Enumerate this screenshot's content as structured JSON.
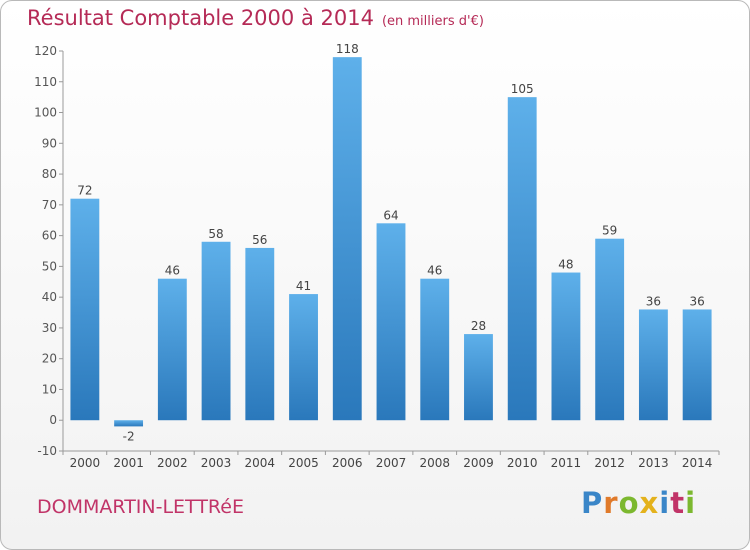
{
  "header": {
    "title": "Résultat Comptable 2000 à 2014",
    "subtitle": "(en milliers d'€)"
  },
  "footer": {
    "town": "DOMMARTIN-LETTRéE",
    "logo_letters": [
      {
        "char": "P",
        "color": "#3a86c8"
      },
      {
        "char": "r",
        "color": "#e07a2a"
      },
      {
        "char": "o",
        "color": "#7cb82f"
      },
      {
        "char": "x",
        "color": "#e4b21c"
      },
      {
        "char": "i",
        "color": "#3a86c8"
      },
      {
        "char": "t",
        "color": "#c13468"
      },
      {
        "char": "i",
        "color": "#7cb82f"
      }
    ]
  },
  "colors": {
    "bar_light": "#5eb0ea",
    "bar_dark": "#2a78bb",
    "accent": "#b52a56"
  },
  "chart_data": {
    "type": "bar",
    "title": "Résultat Comptable 2000 à 2014",
    "subtitle": "(en milliers d'€)",
    "xlabel": "",
    "ylabel": "",
    "categories": [
      "2000",
      "2001",
      "2002",
      "2003",
      "2004",
      "2005",
      "2006",
      "2007",
      "2008",
      "2009",
      "2010",
      "2011",
      "2012",
      "2013",
      "2014"
    ],
    "values": [
      72,
      -2,
      46,
      58,
      56,
      41,
      118,
      64,
      46,
      28,
      105,
      48,
      59,
      36,
      36
    ],
    "ylim": [
      -10,
      120
    ],
    "yticks": [
      -10,
      0,
      10,
      20,
      30,
      40,
      50,
      60,
      70,
      80,
      90,
      100,
      110,
      120
    ],
    "grid": false,
    "legend": "none"
  }
}
